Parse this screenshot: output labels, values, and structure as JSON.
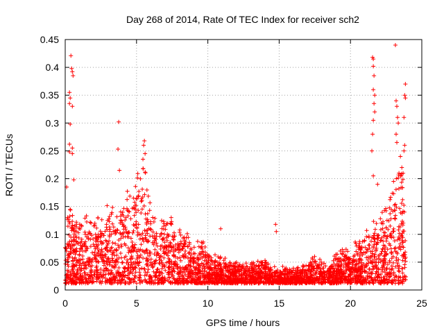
{
  "chart_data": {
    "type": "scatter",
    "title": "Day 268 of 2014, Rate Of TEC Index for receiver sch2",
    "xlabel": "GPS time / hours",
    "ylabel": "ROTI / TECUs",
    "xlim": [
      0,
      25
    ],
    "ylim": [
      0,
      0.45
    ],
    "x_ticks": [
      0,
      5,
      10,
      15,
      20,
      25
    ],
    "x_tick_labels": [
      "0",
      "5",
      "10",
      "15",
      "20",
      "25"
    ],
    "y_ticks": [
      0,
      0.05,
      0.1,
      0.15,
      0.2,
      0.25,
      0.3,
      0.35,
      0.4,
      0.45
    ],
    "y_tick_labels": [
      "0",
      "0.05",
      "0.1",
      "0.15",
      "0.2",
      "0.25",
      "0.3",
      "0.35",
      "0.4",
      "0.45"
    ],
    "grid": true,
    "marker": "+",
    "color": "#ff0000",
    "envelope": {
      "description": "approximate upper envelope of the dense ROTI scatter (hours, TECU)",
      "x": [
        0,
        0.5,
        1,
        1.5,
        2,
        2.5,
        3,
        3.5,
        4,
        4.5,
        5,
        5.5,
        6,
        6.5,
        7,
        7.5,
        8,
        8.5,
        9,
        9.5,
        10,
        10.5,
        11,
        11.5,
        12,
        12.5,
        13,
        13.5,
        14,
        14.5,
        15,
        15.5,
        16,
        16.5,
        17,
        17.5,
        18,
        18.5,
        19,
        19.5,
        20,
        20.5,
        21,
        21.5,
        22,
        22.5,
        23,
        23.5,
        23.9
      ],
      "y": [
        0.15,
        0.14,
        0.12,
        0.13,
        0.12,
        0.13,
        0.15,
        0.14,
        0.17,
        0.18,
        0.2,
        0.23,
        0.15,
        0.12,
        0.13,
        0.12,
        0.1,
        0.11,
        0.08,
        0.09,
        0.07,
        0.06,
        0.06,
        0.05,
        0.05,
        0.05,
        0.05,
        0.05,
        0.06,
        0.04,
        0.04,
        0.04,
        0.04,
        0.04,
        0.05,
        0.06,
        0.05,
        0.05,
        0.06,
        0.08,
        0.06,
        0.09,
        0.1,
        0.12,
        0.13,
        0.15,
        0.2,
        0.25,
        0.2
      ],
      "floor": 0.012
    },
    "outliers": [
      {
        "x": 0.4,
        "y": 0.421
      },
      {
        "x": 0.45,
        "y": 0.398
      },
      {
        "x": 0.5,
        "y": 0.392
      },
      {
        "x": 0.55,
        "y": 0.385
      },
      {
        "x": 0.3,
        "y": 0.355
      },
      {
        "x": 0.35,
        "y": 0.345
      },
      {
        "x": 0.3,
        "y": 0.335
      },
      {
        "x": 0.5,
        "y": 0.33
      },
      {
        "x": 0.35,
        "y": 0.298
      },
      {
        "x": 0.3,
        "y": 0.262
      },
      {
        "x": 0.3,
        "y": 0.248
      },
      {
        "x": 0.5,
        "y": 0.255
      },
      {
        "x": 0.5,
        "y": 0.245
      },
      {
        "x": 0.6,
        "y": 0.198
      },
      {
        "x": 0.1,
        "y": 0.185
      },
      {
        "x": 3.75,
        "y": 0.302
      },
      {
        "x": 3.7,
        "y": 0.253
      },
      {
        "x": 3.8,
        "y": 0.215
      },
      {
        "x": 5.55,
        "y": 0.268
      },
      {
        "x": 5.5,
        "y": 0.26
      },
      {
        "x": 5.6,
        "y": 0.245
      },
      {
        "x": 5.45,
        "y": 0.235
      },
      {
        "x": 14.75,
        "y": 0.118
      },
      {
        "x": 14.8,
        "y": 0.105
      },
      {
        "x": 10.9,
        "y": 0.11
      },
      {
        "x": 21.55,
        "y": 0.418
      },
      {
        "x": 21.6,
        "y": 0.415
      },
      {
        "x": 21.6,
        "y": 0.402
      },
      {
        "x": 21.65,
        "y": 0.385
      },
      {
        "x": 21.6,
        "y": 0.36
      },
      {
        "x": 21.7,
        "y": 0.35
      },
      {
        "x": 21.65,
        "y": 0.335
      },
      {
        "x": 21.7,
        "y": 0.32
      },
      {
        "x": 21.6,
        "y": 0.305
      },
      {
        "x": 21.55,
        "y": 0.28
      },
      {
        "x": 21.5,
        "y": 0.25
      },
      {
        "x": 21.6,
        "y": 0.205
      },
      {
        "x": 21.9,
        "y": 0.19
      },
      {
        "x": 23.15,
        "y": 0.44
      },
      {
        "x": 23.2,
        "y": 0.34
      },
      {
        "x": 23.25,
        "y": 0.33
      },
      {
        "x": 23.3,
        "y": 0.31
      },
      {
        "x": 23.35,
        "y": 0.3
      },
      {
        "x": 23.2,
        "y": 0.28
      },
      {
        "x": 23.25,
        "y": 0.265
      },
      {
        "x": 23.85,
        "y": 0.37
      },
      {
        "x": 23.8,
        "y": 0.35
      },
      {
        "x": 23.85,
        "y": 0.345
      },
      {
        "x": 23.75,
        "y": 0.31
      },
      {
        "x": 23.8,
        "y": 0.26
      },
      {
        "x": 23.75,
        "y": 0.25
      },
      {
        "x": 23.5,
        "y": 0.24
      },
      {
        "x": 23.6,
        "y": 0.22
      },
      {
        "x": 23.4,
        "y": 0.21
      }
    ]
  }
}
